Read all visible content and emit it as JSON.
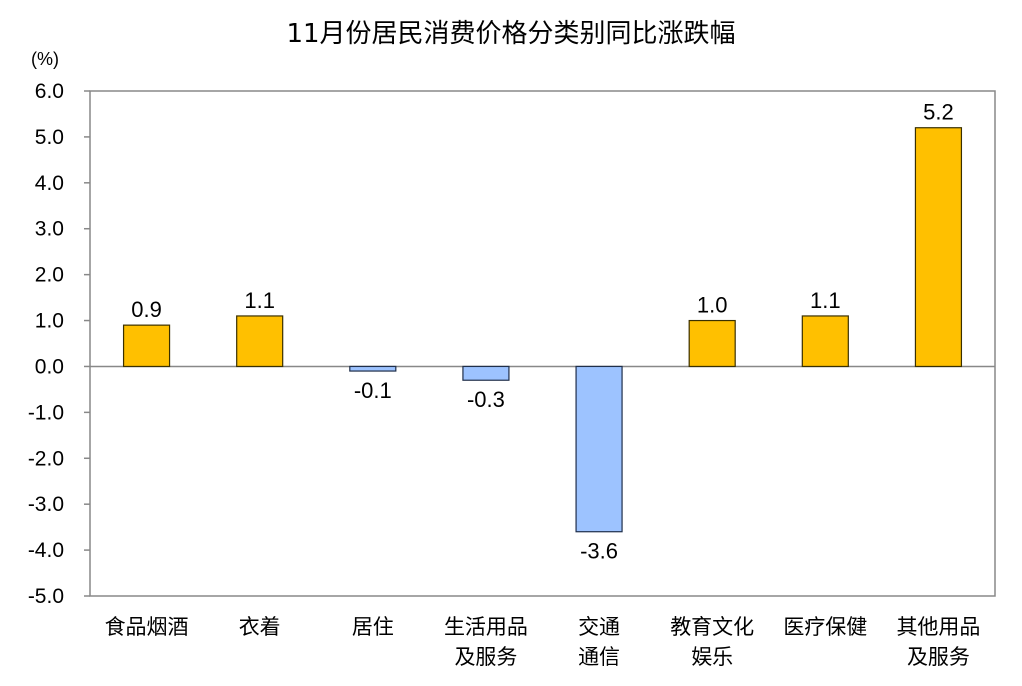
{
  "chart_data": {
    "type": "bar",
    "title": "11月份居民消费价格分类别同比涨跌幅",
    "unit_label": "(%)",
    "xlabel": "",
    "ylabel": "",
    "ylim": [
      -5.0,
      6.0
    ],
    "yticks": [
      6.0,
      5.0,
      4.0,
      3.0,
      2.0,
      1.0,
      0.0,
      -1.0,
      -2.0,
      -3.0,
      -4.0,
      -5.0
    ],
    "ytick_labels": [
      "6.0",
      "5.0",
      "4.0",
      "3.0",
      "2.0",
      "1.0",
      "0.0",
      "-1.0",
      "-2.0",
      "-3.0",
      "-4.0",
      "-5.0"
    ],
    "grid": false,
    "categories": [
      [
        "食品烟酒"
      ],
      [
        "衣着"
      ],
      [
        "居住"
      ],
      [
        "生活用品",
        "及服务"
      ],
      [
        "交通",
        "通信"
      ],
      [
        "教育文化",
        "娱乐"
      ],
      [
        "医疗保健"
      ],
      [
        "其他用品",
        "及服务"
      ]
    ],
    "values": [
      0.9,
      1.1,
      -0.1,
      -0.3,
      -3.6,
      1.0,
      1.1,
      5.2
    ],
    "value_labels": [
      "0.9",
      "1.1",
      "-0.1",
      "-0.3",
      "-3.6",
      "1.0",
      "1.1",
      "5.2"
    ],
    "colors": {
      "positive_fill": "#FFC000",
      "positive_stroke": "#3a3000",
      "negative_fill": "#9DC3FF",
      "negative_stroke": "#1f2f4a",
      "axis": "#888888"
    }
  }
}
